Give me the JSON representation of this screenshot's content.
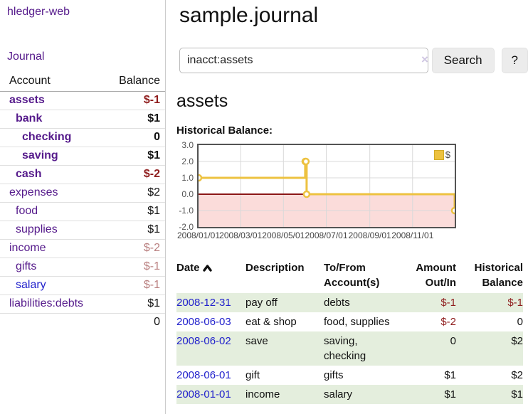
{
  "colors": {
    "brand_link_purple": "#551a8b",
    "link_blue": "#2222cc",
    "negative_red": "#8f1d1d",
    "negative_muted_red": "#b97f7f",
    "row_green": "#e4eedd",
    "chart_series_gold": "#edc240",
    "chart_below_zero_pink": "#fbdcda",
    "chart_zero_line_red": "#8c1717",
    "chart_border_gray": "#545454",
    "grid_line_gray": "#d9d9d9"
  },
  "sidebar": {
    "brand": "hledger-web",
    "journal_link": "Journal",
    "accounts_table": {
      "headers": {
        "account": "Account",
        "balance": "Balance"
      },
      "rows": [
        {
          "name": "assets",
          "balance": "$-1",
          "indent": 1,
          "bold": true,
          "negative": true
        },
        {
          "name": "bank",
          "balance": "$1",
          "indent": 2,
          "bold": true,
          "negative": false
        },
        {
          "name": "checking",
          "balance": "0",
          "indent": 3,
          "bold": true,
          "negative": false
        },
        {
          "name": "saving",
          "balance": "$1",
          "indent": 3,
          "bold": true,
          "negative": false
        },
        {
          "name": "cash",
          "balance": "$-2",
          "indent": 2,
          "bold": true,
          "negative": true
        },
        {
          "name": "expenses",
          "balance": "$2",
          "indent": 1,
          "bold": false,
          "negative": false
        },
        {
          "name": "food",
          "balance": "$1",
          "indent": 2,
          "bold": false,
          "negative": false
        },
        {
          "name": "supplies",
          "balance": "$1",
          "indent": 2,
          "bold": false,
          "negative": false
        },
        {
          "name": "income",
          "balance": "$-2",
          "indent": 1,
          "bold": false,
          "negative": true
        },
        {
          "name": "gifts",
          "balance": "$-1",
          "indent": 2,
          "bold": false,
          "negative": true
        },
        {
          "name": "salary",
          "balance": "$-1",
          "indent": 2,
          "bold": false,
          "negative": true,
          "unvisited": true
        },
        {
          "name": "liabilities:debts",
          "balance": "$1",
          "indent": 1,
          "bold": false,
          "negative": false
        }
      ],
      "total": "0"
    }
  },
  "header": {
    "title": "sample.journal"
  },
  "search": {
    "value": "inacct:assets",
    "clear_icon": "×",
    "button_label": "Search",
    "help_label": "?"
  },
  "account_page": {
    "heading": "assets",
    "chart_label": "Historical Balance:"
  },
  "chart_data": {
    "type": "line",
    "style": "step",
    "title": "Historical Balance",
    "series": [
      {
        "name": "$",
        "points": [
          [
            "2008-01-01",
            1
          ],
          [
            "2008-06-01",
            2
          ],
          [
            "2008-06-02",
            2
          ],
          [
            "2008-06-03",
            0
          ],
          [
            "2008-12-31",
            -1
          ]
        ]
      }
    ],
    "xlim": [
      "2008-01-01",
      "2008-12-31"
    ],
    "ylim": [
      -2,
      3
    ],
    "yticks": [
      3,
      2,
      1,
      0,
      -1,
      -2
    ],
    "xticks": [
      {
        "date": "2008-01-01",
        "label": "2008/01/01"
      },
      {
        "date": "2008-03-01",
        "label": "2008/03/01"
      },
      {
        "date": "2008-05-01",
        "label": "2008/05/01"
      },
      {
        "date": "2008-07-01",
        "label": "2008/07/01"
      },
      {
        "date": "2008-09-01",
        "label": "2008/09/01"
      },
      {
        "date": "2008-11-01",
        "label": "2008/11/01"
      }
    ],
    "legend": {
      "label": "$",
      "position": "top-right"
    },
    "grid": true,
    "below_zero_shaded": true
  },
  "register": {
    "headers": {
      "date": "Date",
      "sort_icon": "chevron-up",
      "description": "Description",
      "accounts": [
        "To/From",
        "Account(s)"
      ],
      "amount": [
        "Amount",
        "Out/In"
      ],
      "balance": [
        "Historical",
        "Balance"
      ]
    },
    "rows": [
      {
        "date": "2008-12-31",
        "description": "pay off",
        "accounts": "debts",
        "amount": "$-1",
        "balance": "$-1"
      },
      {
        "date": "2008-06-03",
        "description": "eat & shop",
        "accounts": "food, supplies",
        "amount": "$-2",
        "balance": "0"
      },
      {
        "date": "2008-06-02",
        "description": "save",
        "accounts": "saving, checking",
        "amount": "0",
        "balance": "$2"
      },
      {
        "date": "2008-06-01",
        "description": "gift",
        "accounts": "gifts",
        "amount": "$1",
        "balance": "$2"
      },
      {
        "date": "2008-01-01",
        "description": "income",
        "accounts": "salary",
        "amount": "$1",
        "balance": "$1"
      }
    ]
  }
}
